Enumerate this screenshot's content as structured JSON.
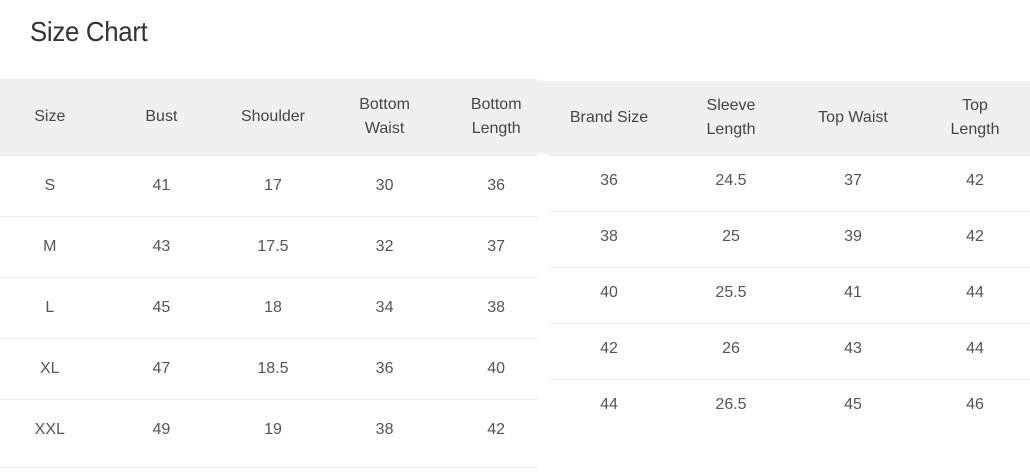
{
  "title": "Size Chart",
  "left_table": {
    "headers": [
      "Size",
      "Bust",
      "Shoulder",
      "Bottom Waist",
      "Bottom Length"
    ],
    "rows": [
      [
        "S",
        "41",
        "17",
        "30",
        "36"
      ],
      [
        "M",
        "43",
        "17.5",
        "32",
        "37"
      ],
      [
        "L",
        "45",
        "18",
        "34",
        "38"
      ],
      [
        "XL",
        "47",
        "18.5",
        "36",
        "40"
      ],
      [
        "XXL",
        "49",
        "19",
        "38",
        "42"
      ]
    ]
  },
  "right_table": {
    "headers": [
      "Brand Size",
      "Sleeve Length",
      "Top Waist",
      "Top Length"
    ],
    "rows": [
      [
        "36",
        "24.5",
        "37",
        "42"
      ],
      [
        "38",
        "25",
        "39",
        "42"
      ],
      [
        "40",
        "25.5",
        "41",
        "44"
      ],
      [
        "42",
        "26",
        "43",
        "44"
      ],
      [
        "44",
        "26.5",
        "45",
        "46"
      ]
    ]
  },
  "colors": {
    "header_bg": "#f0f0f0",
    "text": "#444444"
  }
}
